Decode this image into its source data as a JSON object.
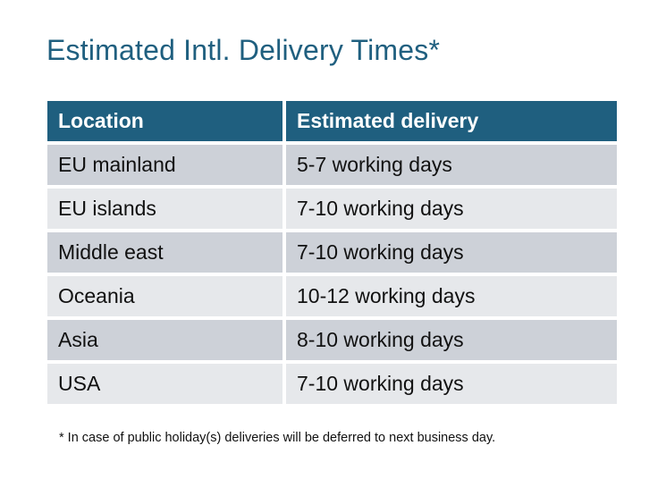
{
  "title": "Estimated Intl. Delivery Times*",
  "table": {
    "headers": [
      "Location",
      "Estimated delivery"
    ],
    "rows": [
      [
        "EU mainland",
        "5-7 working days"
      ],
      [
        "EU islands",
        "7-10 working days"
      ],
      [
        "Middle east",
        "7-10 working days"
      ],
      [
        "Oceania",
        "10-12 working days"
      ],
      [
        "Asia",
        "8-10 working days"
      ],
      [
        "USA",
        "7-10 working days"
      ]
    ]
  },
  "footnote": "* In case of public holiday(s) deliveries will be deferred to next business day.",
  "colors": {
    "header": "#1F5F7F",
    "row_dark": "#CDD1D8",
    "row_light": "#E6E8EB"
  }
}
